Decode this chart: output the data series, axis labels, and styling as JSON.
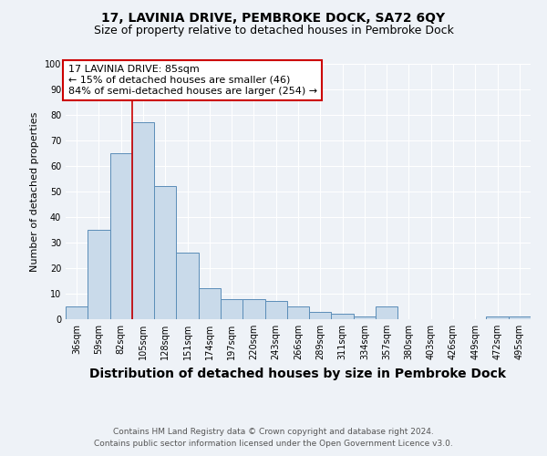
{
  "title": "17, LAVINIA DRIVE, PEMBROKE DOCK, SA72 6QY",
  "subtitle": "Size of property relative to detached houses in Pembroke Dock",
  "xlabel": "Distribution of detached houses by size in Pembroke Dock",
  "ylabel": "Number of detached properties",
  "footnote1": "Contains HM Land Registry data © Crown copyright and database right 2024.",
  "footnote2": "Contains public sector information licensed under the Open Government Licence v3.0.",
  "categories": [
    "36sqm",
    "59sqm",
    "82sqm",
    "105sqm",
    "128sqm",
    "151sqm",
    "174sqm",
    "197sqm",
    "220sqm",
    "243sqm",
    "266sqm",
    "289sqm",
    "311sqm",
    "334sqm",
    "357sqm",
    "380sqm",
    "403sqm",
    "426sqm",
    "449sqm",
    "472sqm",
    "495sqm"
  ],
  "values": [
    5,
    35,
    65,
    77,
    52,
    26,
    12,
    8,
    8,
    7,
    5,
    3,
    2,
    1,
    5,
    0,
    0,
    0,
    0,
    1,
    1
  ],
  "bar_color": "#c9daea",
  "bar_edge_color": "#5b8db8",
  "ylim": [
    0,
    100
  ],
  "yticks": [
    0,
    10,
    20,
    30,
    40,
    50,
    60,
    70,
    80,
    90,
    100
  ],
  "red_line_x": 2.5,
  "red_line_color": "#cc0000",
  "annotation_text_line1": "17 LAVINIA DRIVE: 85sqm",
  "annotation_text_line2": "← 15% of detached houses are smaller (46)",
  "annotation_text_line3": "84% of semi-detached houses are larger (254) →",
  "annotation_box_facecolor": "#ffffff",
  "annotation_box_edgecolor": "#cc0000",
  "background_color": "#eef2f7",
  "grid_color": "#ffffff",
  "title_fontsize": 10,
  "subtitle_fontsize": 9,
  "xlabel_fontsize": 10,
  "ylabel_fontsize": 8,
  "tick_fontsize": 7,
  "annotation_fontsize": 8,
  "footnote_fontsize": 6.5
}
